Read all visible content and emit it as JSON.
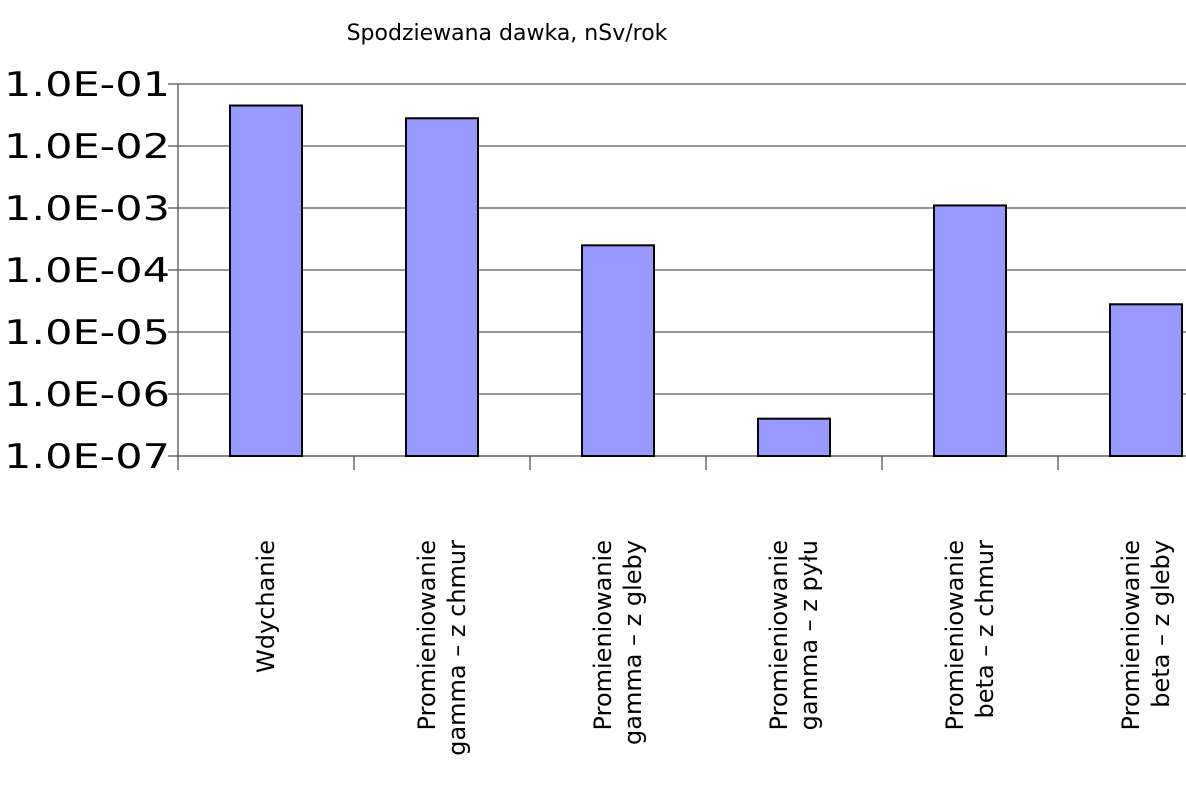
{
  "chart_data": {
    "type": "bar",
    "title": "Spodziewana dawka, nSv/rok",
    "xlabel": "",
    "ylabel": "",
    "y_scale": "log",
    "ylim": [
      1e-07,
      0.1
    ],
    "y_ticks": [
      {
        "value": 0.1,
        "label": "1.0E-01"
      },
      {
        "value": 0.01,
        "label": "1.0E-02"
      },
      {
        "value": 0.001,
        "label": "1.0E-03"
      },
      {
        "value": 0.0001,
        "label": "1.0E-04"
      },
      {
        "value": 1e-05,
        "label": "1.0E-05"
      },
      {
        "value": 1e-06,
        "label": "1.0E-06"
      },
      {
        "value": 1e-07,
        "label": "1.0E-07"
      }
    ],
    "grid": true,
    "legend": "none",
    "bar_color": "#9999ff",
    "categories": [
      {
        "label_lines": [
          "Wdychanie"
        ]
      },
      {
        "label_lines": [
          "Promieniowanie",
          "gamma – z chmur"
        ]
      },
      {
        "label_lines": [
          "Promieniowanie",
          "gamma – z gleby"
        ]
      },
      {
        "label_lines": [
          "Promieniowanie",
          "gamma – z pyłu"
        ]
      },
      {
        "label_lines": [
          "Promieniowanie",
          "beta – z chmur"
        ]
      },
      {
        "label_lines": [
          "Promieniowanie",
          "beta – z gleby"
        ]
      }
    ],
    "values": [
      0.045,
      0.028,
      0.00025,
      4e-07,
      0.0011,
      2.8e-05
    ]
  }
}
